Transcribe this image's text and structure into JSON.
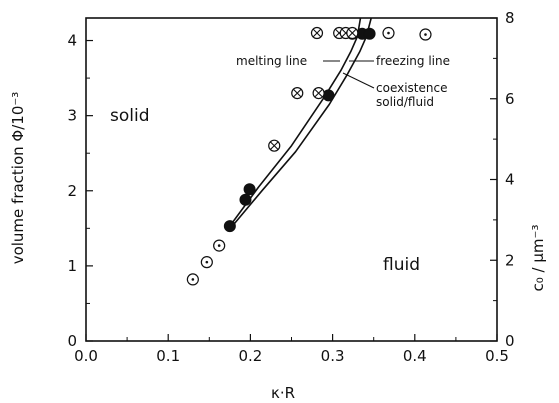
{
  "chart_data": {
    "type": "scatter",
    "xlabel": "κ·R",
    "ylabel": "volume fraction Φ/10⁻³",
    "y2label": "c₀ / μm⁻³",
    "xlim": [
      0.0,
      0.5
    ],
    "ylim": [
      0,
      4.3
    ],
    "y2lim": [
      0,
      8
    ],
    "x_ticks": [
      "0.0",
      "0.1",
      "0.2",
      "0.3",
      "0.4",
      "0.5"
    ],
    "y_ticks": [
      "0",
      "1",
      "2",
      "3",
      "4"
    ],
    "y2_ticks": [
      "0",
      "2",
      "4",
      "6",
      "8"
    ],
    "grid": false,
    "series": [
      {
        "marker": "circle-dot",
        "x": [
          0.13,
          0.147,
          0.162,
          0.368,
          0.413
        ],
        "y": [
          0.82,
          1.05,
          1.27,
          4.1,
          4.08
        ]
      },
      {
        "marker": "filled-circle",
        "x": [
          0.175,
          0.194,
          0.199,
          0.295,
          0.324,
          0.336,
          0.345
        ],
        "y": [
          1.53,
          1.88,
          2.02,
          3.27,
          4.09,
          4.09,
          4.09
        ]
      },
      {
        "marker": "circle-cross",
        "x": [
          0.229,
          0.257,
          0.283,
          0.281,
          0.308,
          0.316,
          0.324
        ],
        "y": [
          2.6,
          3.3,
          3.3,
          4.1,
          4.1,
          4.1,
          4.1
        ]
      }
    ],
    "lines": [
      {
        "label": "melting line",
        "x": [
          0.175,
          0.21,
          0.25,
          0.29,
          0.31,
          0.322,
          0.33,
          0.334
        ],
        "y": [
          1.53,
          2.05,
          2.6,
          3.25,
          3.6,
          3.85,
          4.05,
          4.3
        ]
      },
      {
        "label": "freezing line",
        "x": [
          0.178,
          0.214,
          0.255,
          0.296,
          0.318,
          0.333,
          0.341,
          0.347
        ],
        "y": [
          1.53,
          2.0,
          2.52,
          3.15,
          3.55,
          3.85,
          4.05,
          4.3
        ]
      }
    ],
    "region_labels": [
      "solid",
      "fluid"
    ],
    "annotations": [
      "melting line",
      "freezing line",
      "coexistence",
      "solid/fluid"
    ]
  }
}
